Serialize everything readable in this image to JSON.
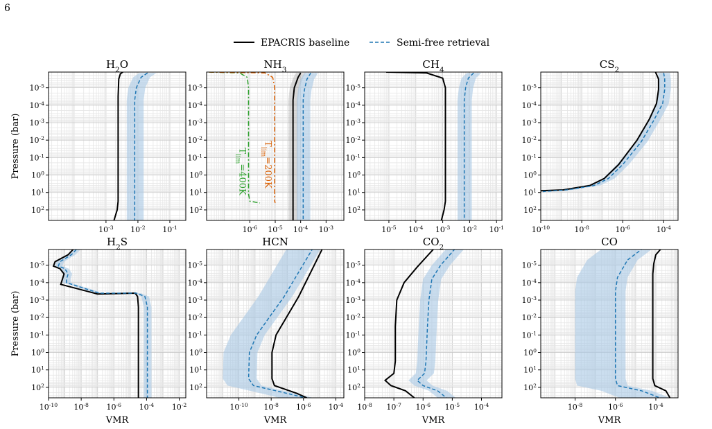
{
  "page_number": "6",
  "legend": {
    "items": [
      {
        "label": "EPACRIS baseline",
        "color": "#000000",
        "style": "solid"
      },
      {
        "label": "Semi-free retrieval",
        "color": "#1f77b4",
        "style": "dashed"
      }
    ]
  },
  "axis": {
    "ylabel": "Pressure (bar)",
    "xlabel": "VMR",
    "y_scale": "log",
    "y_reversed": true,
    "y_ticks": [
      "10",
      "10",
      "10",
      "10",
      "10",
      "10",
      "10",
      "10"
    ],
    "y_tick_exponents": [
      "-5",
      "-4",
      "-3",
      "-2",
      "-1",
      "0",
      "1",
      "2"
    ]
  },
  "colors": {
    "baseline": "#000000",
    "retrieval": "#1f77b4",
    "band": "#a9c8e4",
    "tlim400": "#2ca02c",
    "tlim200": "#d95f02"
  },
  "chart_data": [
    {
      "type": "line",
      "title_base": "H",
      "title_sub": "2",
      "title_tail": "O",
      "x_scale": "log",
      "xlim_exp": [
        -4.8,
        -0.5
      ],
      "ylim_exp": [
        -5.9,
        2.6
      ],
      "x_ticks_exp": [
        -3,
        -2,
        -1
      ],
      "series": [
        {
          "role": "baseline",
          "points": [
            [
              -2.4,
              -6.0
            ],
            [
              -2.55,
              -5.8
            ],
            [
              -2.6,
              -5.5
            ],
            [
              -2.62,
              -4.5
            ],
            [
              -2.62,
              0
            ],
            [
              -2.62,
              1.5
            ],
            [
              -2.65,
              2
            ],
            [
              -2.75,
              2.6
            ]
          ]
        },
        {
          "role": "retrieval",
          "points": [
            [
              -1.7,
              -5.85
            ],
            [
              -1.9,
              -5.6
            ],
            [
              -2.05,
              -5.0
            ],
            [
              -2.1,
              -4.3
            ],
            [
              -2.1,
              2.6
            ]
          ],
          "band": [
            0.25,
            0.28
          ]
        }
      ]
    },
    {
      "type": "line",
      "title_base": "NH",
      "title_sub": "3",
      "title_tail": "",
      "x_scale": "log",
      "xlim_exp": [
        -7.7,
        -2.3
      ],
      "ylim_exp": [
        -5.9,
        2.6
      ],
      "x_ticks_exp": [
        -6,
        -5,
        -4,
        -3
      ],
      "series": [
        {
          "role": "baseline",
          "points": [
            [
              -4.0,
              -5.85
            ],
            [
              -4.1,
              -5.6
            ],
            [
              -4.25,
              -5.0
            ],
            [
              -4.3,
              -4.3
            ],
            [
              -4.3,
              2.6
            ]
          ],
          "band": [
            0.18,
            0.2
          ]
        },
        {
          "role": "retrieval",
          "points": [
            [
              -3.6,
              -5.85
            ],
            [
              -3.75,
              -5.5
            ],
            [
              -3.85,
              -4.9
            ],
            [
              -3.9,
              -4.3
            ],
            [
              -3.9,
              2.6
            ]
          ],
          "band": [
            0.25,
            0.28
          ]
        },
        {
          "role": "tlim400",
          "points": [
            [
              -7.6,
              -5.9
            ],
            [
              -6.4,
              -5.85
            ],
            [
              -6.1,
              -5.6
            ],
            [
              -6.05,
              -5
            ],
            [
              -6.05,
              1.1
            ],
            [
              -6.0,
              1.5
            ],
            [
              -5.6,
              1.6
            ]
          ]
        },
        {
          "role": "tlim200",
          "points": [
            [
              -7.6,
              -5.9
            ],
            [
              -5.4,
              -5.85
            ],
            [
              -5.1,
              -5.6
            ],
            [
              -5.02,
              -5
            ],
            [
              -5.02,
              1.5
            ],
            [
              -5.0,
              1.6
            ]
          ]
        }
      ],
      "annotations": [
        {
          "base": "T",
          "sub": "lim",
          "tail": "=400K",
          "color": "#2ca02c",
          "x_exp": -6.4,
          "y_exp": -0.2
        },
        {
          "base": "T",
          "sub": "lim",
          "tail": "=200K",
          "color": "#d95f02",
          "x_exp": -5.4,
          "y_exp": -0.6
        }
      ]
    },
    {
      "type": "line",
      "title_base": "CH",
      "title_sub": "4",
      "title_tail": "",
      "x_scale": "log",
      "xlim_exp": [
        -5.9,
        -0.8
      ],
      "ylim_exp": [
        -5.9,
        2.6
      ],
      "x_ticks_exp": [
        -5,
        -4,
        -3,
        -2,
        -1
      ],
      "series": [
        {
          "role": "baseline",
          "points": [
            [
              -5.1,
              -5.9
            ],
            [
              -3.6,
              -5.85
            ],
            [
              -3.0,
              -5.55
            ],
            [
              -2.9,
              -5.0
            ],
            [
              -2.9,
              1.5
            ],
            [
              -2.95,
              2
            ],
            [
              -3.05,
              2.6
            ]
          ]
        },
        {
          "role": "retrieval",
          "points": [
            [
              -1.85,
              -5.85
            ],
            [
              -2.05,
              -5.55
            ],
            [
              -2.15,
              -5.0
            ],
            [
              -2.2,
              -4.3
            ],
            [
              -2.2,
              2.6
            ]
          ],
          "band": [
            0.25,
            0.28
          ]
        }
      ]
    },
    {
      "type": "line",
      "title_base": "CS",
      "title_sub": "2",
      "title_tail": "",
      "x_scale": "log",
      "xlim_exp": [
        -10,
        -3.3
      ],
      "ylim_exp": [
        -5.9,
        2.6
      ],
      "x_ticks_exp": [
        -10,
        -8,
        -6,
        -4
      ],
      "series": [
        {
          "role": "baseline",
          "points": [
            [
              -4.4,
              -5.9
            ],
            [
              -4.25,
              -5.5
            ],
            [
              -4.25,
              -4.9
            ],
            [
              -4.35,
              -4.1
            ],
            [
              -4.7,
              -3.2
            ],
            [
              -5.3,
              -2.0
            ],
            [
              -6.2,
              -0.6
            ],
            [
              -6.9,
              0.2
            ],
            [
              -7.6,
              0.6
            ],
            [
              -8.9,
              0.85
            ],
            [
              -10,
              0.9
            ]
          ]
        },
        {
          "role": "retrieval",
          "points": [
            [
              -4.0,
              -5.85
            ],
            [
              -3.95,
              -5.5
            ],
            [
              -3.95,
              -4.9
            ],
            [
              -4.05,
              -4.1
            ],
            [
              -4.5,
              -3.1
            ],
            [
              -5.1,
              -1.9
            ],
            [
              -6.0,
              -0.6
            ],
            [
              -6.7,
              0.2
            ],
            [
              -7.4,
              0.6
            ],
            [
              -8.7,
              0.85
            ],
            [
              -9.9,
              0.95
            ]
          ],
          "band": [
            0.28,
            0.3
          ]
        }
      ]
    },
    {
      "type": "line",
      "title_base": "H",
      "title_sub": "2",
      "title_tail": "S",
      "x_scale": "log",
      "xlim_exp": [
        -10,
        -1.6
      ],
      "ylim_exp": [
        -5.9,
        2.6
      ],
      "x_ticks_exp": [
        -10,
        -8,
        -6,
        -4,
        -2
      ],
      "series": [
        {
          "role": "baseline",
          "points": [
            [
              -8.5,
              -5.9
            ],
            [
              -8.8,
              -5.6
            ],
            [
              -9.6,
              -5.2
            ],
            [
              -9.7,
              -4.95
            ],
            [
              -9.3,
              -4.8
            ],
            [
              -9.05,
              -4.5
            ],
            [
              -9.15,
              -4.2
            ],
            [
              -9.25,
              -3.9
            ],
            [
              -7.0,
              -3.35
            ],
            [
              -4.7,
              -3.4
            ],
            [
              -4.55,
              -3.2
            ],
            [
              -4.5,
              -2.6
            ],
            [
              -4.5,
              2.6
            ]
          ]
        },
        {
          "role": "retrieval",
          "points": [
            [
              -8.3,
              -5.9
            ],
            [
              -8.6,
              -5.6
            ],
            [
              -9.3,
              -5.2
            ],
            [
              -9.4,
              -4.95
            ],
            [
              -9.0,
              -4.8
            ],
            [
              -8.8,
              -4.5
            ],
            [
              -8.9,
              -4.2
            ],
            [
              -8.9,
              -4.0
            ],
            [
              -6.9,
              -3.4
            ],
            [
              -4.6,
              -3.4
            ],
            [
              -4.1,
              -3.2
            ],
            [
              -3.95,
              -2.6
            ],
            [
              -3.95,
              2.6
            ]
          ],
          "band": [
            0.22,
            0.25
          ]
        }
      ]
    },
    {
      "type": "line",
      "title_base": "HCN",
      "title_sub": "",
      "title_tail": "",
      "x_scale": "log",
      "xlim_exp": [
        -12,
        -3.5
      ],
      "ylim_exp": [
        -5.9,
        2.6
      ],
      "x_ticks_exp": [
        -10,
        -8,
        -6,
        -4
      ],
      "series": [
        {
          "role": "baseline",
          "points": [
            [
              -4.8,
              -6.0
            ],
            [
              -6.3,
              -3.2
            ],
            [
              -7.7,
              -1.0
            ],
            [
              -7.95,
              0.0
            ],
            [
              -7.95,
              1.5
            ],
            [
              -7.8,
              1.9
            ],
            [
              -6.4,
              2.35
            ],
            [
              -5.8,
              2.6
            ]
          ]
        },
        {
          "role": "retrieval",
          "points": [
            [
              -5.4,
              -6.0
            ],
            [
              -7.2,
              -3.2
            ],
            [
              -8.9,
              -1.0
            ],
            [
              -9.35,
              0.0
            ],
            [
              -9.4,
              1.5
            ],
            [
              -9.1,
              1.9
            ],
            [
              -7.0,
              2.35
            ],
            [
              -5.9,
              2.6
            ]
          ],
          "band": [
            1.6,
            0.5
          ]
        }
      ]
    },
    {
      "type": "line",
      "title_base": "CO",
      "title_sub": "2",
      "title_tail": "",
      "x_scale": "log",
      "xlim_exp": [
        -8,
        -3.3
      ],
      "ylim_exp": [
        -5.9,
        2.6
      ],
      "x_ticks_exp": [
        -8,
        -7,
        -6,
        -5,
        -4
      ],
      "series": [
        {
          "role": "baseline",
          "points": [
            [
              -5.6,
              -6.0
            ],
            [
              -6.2,
              -4.9
            ],
            [
              -6.65,
              -4.0
            ],
            [
              -6.9,
              -3.0
            ],
            [
              -6.95,
              -1.5
            ],
            [
              -6.95,
              0.5
            ],
            [
              -7.0,
              1.2
            ],
            [
              -7.3,
              1.6
            ],
            [
              -7.1,
              1.9
            ],
            [
              -6.6,
              2.2
            ],
            [
              -6.3,
              2.6
            ]
          ]
        },
        {
          "role": "retrieval",
          "points": [
            [
              -4.9,
              -5.95
            ],
            [
              -5.4,
              -5.0
            ],
            [
              -5.7,
              -4.2
            ],
            [
              -5.8,
              -3.0
            ],
            [
              -5.85,
              -1.5
            ],
            [
              -5.9,
              0.5
            ],
            [
              -5.95,
              1.2
            ],
            [
              -6.2,
              1.6
            ],
            [
              -6.0,
              1.9
            ],
            [
              -5.5,
              2.2
            ],
            [
              -5.2,
              2.6
            ]
          ],
          "band": [
            0.3,
            0.32
          ]
        }
      ]
    },
    {
      "type": "line",
      "title_base": "CO",
      "title_sub": "",
      "title_tail": "",
      "x_scale": "log",
      "xlim_exp": [
        -9.7,
        -2.9
      ],
      "ylim_exp": [
        -5.9,
        2.6
      ],
      "x_ticks_exp": [
        -8,
        -6,
        -4
      ],
      "series": [
        {
          "role": "baseline",
          "points": [
            [
              -3.7,
              -6.0
            ],
            [
              -4.0,
              -5.6
            ],
            [
              -4.1,
              -5.1
            ],
            [
              -4.15,
              -4.5
            ],
            [
              -4.15,
              1.5
            ],
            [
              -4.05,
              1.9
            ],
            [
              -3.5,
              2.2
            ],
            [
              -3.3,
              2.6
            ]
          ]
        },
        {
          "role": "retrieval",
          "points": [
            [
              -4.6,
              -6.0
            ],
            [
              -5.4,
              -5.3
            ],
            [
              -5.9,
              -4.3
            ],
            [
              -6.0,
              -3.5
            ],
            [
              -6.0,
              1.5
            ],
            [
              -5.9,
              1.9
            ],
            [
              -4.7,
              2.2
            ],
            [
              -3.8,
              2.6
            ]
          ],
          "band": [
            2.0,
            0.5
          ]
        }
      ]
    }
  ]
}
